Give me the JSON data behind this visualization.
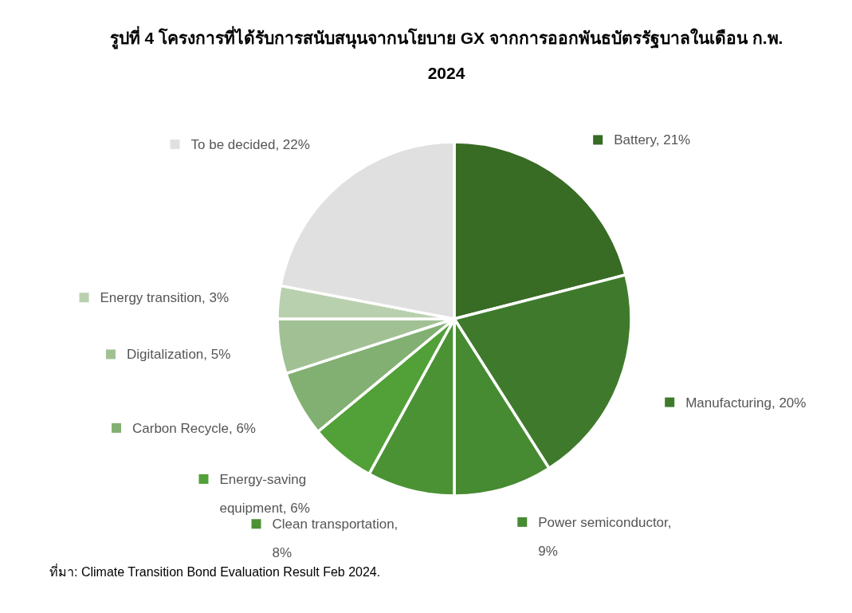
{
  "chart_data": {
    "type": "pie",
    "title": "รูปที่ 4 โครงการที่ได้รับการสนับสนุนจากนโยบาย GX จากการออกพันธบัตรรัฐบาลในเดือน ก.พ. 2024",
    "categories": [
      "Battery, 21%",
      "Manufacturing, 20%",
      "Power semiconductor, 9%",
      "Clean transportation, 8%",
      "Energy-saving equipment, 6%",
      "Carbon Recycle, 6%",
      "Digitalization, 5%",
      "Energy transition, 3%",
      "To be decided, 22%"
    ],
    "values": [
      21,
      20,
      9,
      8,
      6,
      6,
      5,
      3,
      22
    ],
    "colors": [
      "#386b24",
      "#3f7a2c",
      "#468a32",
      "#4b9235",
      "#52a038",
      "#82b072",
      "#a1c194",
      "#b9d0ae",
      "#e0e0e0"
    ],
    "legend": "left",
    "annotations": [
      "ที่มา: Climate Transition Bond Evaluation Result Feb 2024."
    ]
  }
}
